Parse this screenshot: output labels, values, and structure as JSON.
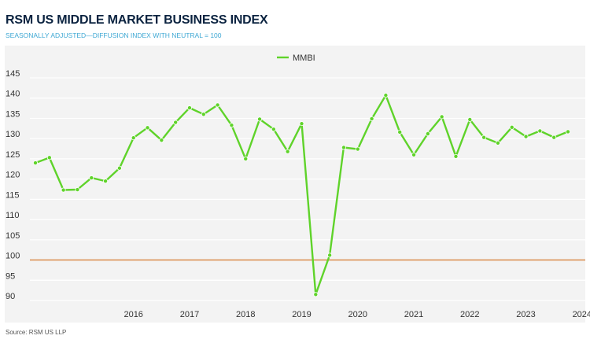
{
  "header": {
    "title": "RSM US MIDDLE MARKET BUSINESS INDEX",
    "subtitle": "SEASONALLY ADJUSTED—DIFFUSION INDEX WITH NEUTRAL = 100"
  },
  "footer": {
    "source": "Source: RSM US LLP"
  },
  "colors": {
    "series": "#5fd32a",
    "neutral_line": "#d98a4a",
    "grid": "#ffffff",
    "panel": "#f3f3f3"
  },
  "chart_data": {
    "type": "line",
    "title": "RSM US MIDDLE MARKET BUSINESS INDEX",
    "subtitle": "SEASONALLY ADJUSTED—DIFFUSION INDEX WITH NEUTRAL = 100",
    "xlabel": "",
    "ylabel": "",
    "ylim": [
      88,
      146
    ],
    "yticks": [
      90,
      95,
      100,
      105,
      110,
      115,
      120,
      125,
      130,
      135,
      140,
      145
    ],
    "x_tick_labels": [
      {
        "label": "2016",
        "x": 2016.0
      },
      {
        "label": "2017",
        "x": 2017.0
      },
      {
        "label": "2018",
        "x": 2018.0
      },
      {
        "label": "2019",
        "x": 2019.0
      },
      {
        "label": "2020",
        "x": 2020.0
      },
      {
        "label": "2021",
        "x": 2021.0
      },
      {
        "label": "2022",
        "x": 2022.0
      },
      {
        "label": "2023",
        "x": 2023.0
      },
      {
        "label": "2024",
        "x": 2024.0
      }
    ],
    "xlim": [
      2015.0,
      2025.3
    ],
    "legend": "top-center",
    "grid": true,
    "reference_line": {
      "y": 100
    },
    "series": [
      {
        "name": "MMBI",
        "points": [
          {
            "x": 2015.0,
            "y": 124.0
          },
          {
            "x": 2015.25,
            "y": 125.3
          },
          {
            "x": 2015.5,
            "y": 117.3
          },
          {
            "x": 2015.75,
            "y": 117.4
          },
          {
            "x": 2016.0,
            "y": 120.3
          },
          {
            "x": 2016.25,
            "y": 119.5
          },
          {
            "x": 2016.5,
            "y": 122.7
          },
          {
            "x": 2016.75,
            "y": 130.2
          },
          {
            "x": 2017.0,
            "y": 132.7
          },
          {
            "x": 2017.25,
            "y": 129.6
          },
          {
            "x": 2017.5,
            "y": 134.0
          },
          {
            "x": 2017.75,
            "y": 137.6
          },
          {
            "x": 2018.0,
            "y": 136.0
          },
          {
            "x": 2018.25,
            "y": 138.3
          },
          {
            "x": 2018.5,
            "y": 133.3
          },
          {
            "x": 2018.75,
            "y": 125.0
          },
          {
            "x": 2019.0,
            "y": 134.8
          },
          {
            "x": 2019.25,
            "y": 132.3
          },
          {
            "x": 2019.5,
            "y": 126.8
          },
          {
            "x": 2019.75,
            "y": 133.7
          },
          {
            "x": 2020.0,
            "y": 91.5
          },
          {
            "x": 2020.25,
            "y": 101.2
          },
          {
            "x": 2020.5,
            "y": 127.8
          },
          {
            "x": 2020.75,
            "y": 127.4
          },
          {
            "x": 2021.0,
            "y": 134.9
          },
          {
            "x": 2021.25,
            "y": 140.7
          },
          {
            "x": 2021.5,
            "y": 131.6
          },
          {
            "x": 2021.75,
            "y": 126.0
          },
          {
            "x": 2022.0,
            "y": 131.2
          },
          {
            "x": 2022.25,
            "y": 135.4
          },
          {
            "x": 2022.5,
            "y": 125.6
          },
          {
            "x": 2022.75,
            "y": 134.7
          },
          {
            "x": 2023.0,
            "y": 130.3
          },
          {
            "x": 2023.25,
            "y": 128.9
          },
          {
            "x": 2023.5,
            "y": 132.8
          },
          {
            "x": 2023.75,
            "y": 130.5
          },
          {
            "x": 2024.0,
            "y": 131.9
          },
          {
            "x": 2024.25,
            "y": 130.3
          },
          {
            "x": 2024.5,
            "y": 131.7
          }
        ]
      }
    ]
  }
}
